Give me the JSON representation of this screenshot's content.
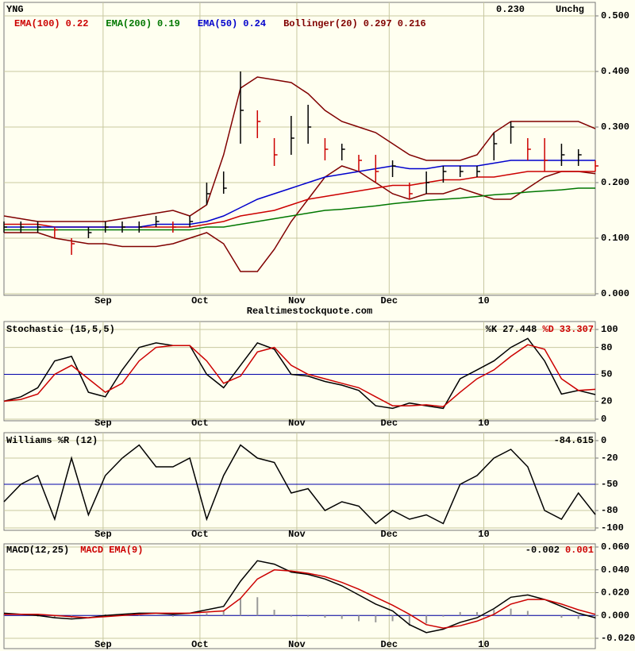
{
  "chart_data": [
    {
      "type": "ohlc",
      "symbol": "YNG",
      "price": "0.230",
      "change": "Unchg",
      "source": "Realtimestockquote.com",
      "x": [
        0,
        3,
        6,
        9,
        12,
        15,
        18,
        21,
        24,
        27,
        30,
        33,
        36,
        39,
        42,
        45,
        48,
        51,
        54,
        57,
        60,
        63,
        66,
        69,
        72,
        75,
        78,
        81,
        84,
        87,
        90,
        93,
        96,
        99,
        102,
        105
      ],
      "xlim": [
        0,
        105
      ],
      "xticks": [
        {
          "value": 17.6,
          "label": "Sep"
        },
        {
          "value": 34.8,
          "label": "Oct"
        },
        {
          "value": 52,
          "label": "Nov"
        },
        {
          "value": 68.4,
          "label": "Dec"
        },
        {
          "value": 85.2,
          "label": "10"
        }
      ],
      "ylim": [
        0,
        0.5
      ],
      "yticks": [
        {
          "value": 0,
          "label": "0.000"
        },
        {
          "value": 0.1,
          "label": "0.100"
        },
        {
          "value": 0.2,
          "label": "0.200"
        },
        {
          "value": 0.3,
          "label": "0.300"
        },
        {
          "value": 0.4,
          "label": "0.400"
        },
        {
          "value": 0.5,
          "label": "0.500"
        }
      ],
      "grid": true,
      "legend": "left",
      "up_color": "#000000",
      "down_color": "#cc0000",
      "high": [
        0.13,
        0.13,
        0.13,
        0.12,
        0.1,
        0.12,
        0.13,
        0.13,
        0.13,
        0.14,
        0.13,
        0.14,
        0.2,
        0.22,
        0.4,
        0.33,
        0.28,
        0.32,
        0.34,
        0.28,
        0.27,
        0.25,
        0.25,
        0.24,
        0.2,
        0.22,
        0.23,
        0.23,
        0.23,
        0.29,
        0.31,
        0.28,
        0.28,
        0.27,
        0.26,
        0.24
      ],
      "low": [
        0.11,
        0.11,
        0.11,
        0.1,
        0.07,
        0.1,
        0.11,
        0.11,
        0.11,
        0.12,
        0.11,
        0.12,
        0.16,
        0.18,
        0.27,
        0.28,
        0.23,
        0.25,
        0.27,
        0.24,
        0.24,
        0.22,
        0.2,
        0.21,
        0.17,
        0.18,
        0.2,
        0.21,
        0.21,
        0.24,
        0.27,
        0.24,
        0.22,
        0.23,
        0.23,
        0.22
      ],
      "close": [
        0.12,
        0.12,
        0.12,
        0.115,
        0.09,
        0.11,
        0.12,
        0.12,
        0.12,
        0.13,
        0.12,
        0.13,
        0.18,
        0.19,
        0.33,
        0.31,
        0.25,
        0.28,
        0.3,
        0.26,
        0.26,
        0.24,
        0.22,
        0.23,
        0.18,
        0.2,
        0.22,
        0.22,
        0.22,
        0.27,
        0.3,
        0.26,
        0.24,
        0.25,
        0.25,
        0.23
      ],
      "series": [
        {
          "name": "EMA(100)",
          "color": "#cc0000",
          "values": [
            0.125,
            0.125,
            0.125,
            0.12,
            0.12,
            0.12,
            0.12,
            0.12,
            0.12,
            0.12,
            0.12,
            0.12,
            0.125,
            0.13,
            0.14,
            0.145,
            0.15,
            0.16,
            0.17,
            0.175,
            0.18,
            0.185,
            0.19,
            0.195,
            0.195,
            0.2,
            0.205,
            0.205,
            0.21,
            0.21,
            0.215,
            0.22,
            0.22,
            0.22,
            0.22,
            0.22
          ]
        },
        {
          "name": "EMA(200)",
          "color": "#007700",
          "values": [
            0.115,
            0.115,
            0.115,
            0.115,
            0.115,
            0.115,
            0.115,
            0.115,
            0.115,
            0.115,
            0.115,
            0.115,
            0.12,
            0.12,
            0.125,
            0.13,
            0.135,
            0.14,
            0.145,
            0.15,
            0.152,
            0.155,
            0.158,
            0.162,
            0.165,
            0.168,
            0.17,
            0.172,
            0.175,
            0.178,
            0.18,
            0.183,
            0.185,
            0.187,
            0.19,
            0.19
          ]
        },
        {
          "name": "EMA(50)",
          "color": "#0000cc",
          "values": [
            0.12,
            0.12,
            0.12,
            0.12,
            0.12,
            0.12,
            0.12,
            0.12,
            0.12,
            0.125,
            0.125,
            0.125,
            0.13,
            0.14,
            0.155,
            0.17,
            0.18,
            0.19,
            0.2,
            0.21,
            0.215,
            0.22,
            0.225,
            0.23,
            0.225,
            0.225,
            0.23,
            0.23,
            0.23,
            0.235,
            0.24,
            0.24,
            0.24,
            0.24,
            0.24,
            0.24
          ]
        }
      ],
      "bands": {
        "name": "Bollinger(20)",
        "color": "#800000",
        "upper": [
          0.14,
          0.135,
          0.13,
          0.13,
          0.13,
          0.13,
          0.13,
          0.135,
          0.14,
          0.145,
          0.15,
          0.14,
          0.16,
          0.25,
          0.37,
          0.39,
          0.385,
          0.38,
          0.36,
          0.33,
          0.31,
          0.3,
          0.29,
          0.27,
          0.25,
          0.24,
          0.24,
          0.24,
          0.25,
          0.29,
          0.31,
          0.31,
          0.31,
          0.31,
          0.31,
          0.297
        ],
        "lower": [
          0.11,
          0.11,
          0.11,
          0.1,
          0.095,
          0.09,
          0.09,
          0.085,
          0.085,
          0.085,
          0.09,
          0.1,
          0.11,
          0.09,
          0.04,
          0.04,
          0.08,
          0.13,
          0.17,
          0.21,
          0.23,
          0.22,
          0.2,
          0.18,
          0.17,
          0.18,
          0.18,
          0.19,
          0.18,
          0.17,
          0.17,
          0.19,
          0.21,
          0.22,
          0.22,
          0.216
        ]
      }
    },
    {
      "type": "line",
      "title": "Stochastic (15,5,5)",
      "x": [
        0,
        3,
        6,
        9,
        12,
        15,
        18,
        21,
        24,
        27,
        30,
        33,
        36,
        39,
        42,
        45,
        48,
        51,
        54,
        57,
        60,
        63,
        66,
        69,
        72,
        75,
        78,
        81,
        84,
        87,
        90,
        93,
        96,
        99,
        102,
        105
      ],
      "xlim": [
        0,
        105
      ],
      "xticks": [
        {
          "value": 17.6,
          "label": "Sep"
        },
        {
          "value": 34.8,
          "label": "Oct"
        },
        {
          "value": 52,
          "label": "Nov"
        },
        {
          "value": 68.4,
          "label": "Dec"
        },
        {
          "value": 85.2,
          "label": "10"
        }
      ],
      "ylim": [
        0,
        100
      ],
      "yticks": [
        0,
        20,
        50,
        80,
        100
      ],
      "grid": true,
      "legend": "right",
      "reference_line": 50,
      "reference_color": "#0000aa",
      "series": [
        {
          "name": "%K",
          "color": "#000000",
          "values": [
            20,
            25,
            35,
            65,
            70,
            30,
            25,
            55,
            80,
            85,
            82,
            82,
            50,
            35,
            60,
            85,
            78,
            50,
            48,
            42,
            38,
            32,
            15,
            12,
            18,
            15,
            12,
            45,
            55,
            65,
            80,
            90,
            65,
            28,
            32,
            27.448
          ]
        },
        {
          "name": "%D",
          "color": "#cc0000",
          "values": [
            20,
            22,
            28,
            50,
            60,
            45,
            30,
            40,
            65,
            80,
            82,
            82,
            65,
            40,
            48,
            75,
            80,
            60,
            50,
            45,
            40,
            35,
            25,
            15,
            15,
            16,
            14,
            30,
            45,
            55,
            70,
            83,
            78,
            45,
            32,
            33.307
          ]
        }
      ]
    },
    {
      "type": "line",
      "title": "Williams %R (12)",
      "x": [
        0,
        3,
        6,
        9,
        12,
        15,
        18,
        21,
        24,
        27,
        30,
        33,
        36,
        39,
        42,
        45,
        48,
        51,
        54,
        57,
        60,
        63,
        66,
        69,
        72,
        75,
        78,
        81,
        84,
        87,
        90,
        93,
        96,
        99,
        102,
        105
      ],
      "xlim": [
        0,
        105
      ],
      "xticks": [
        {
          "value": 17.6,
          "label": "Sep"
        },
        {
          "value": 34.8,
          "label": "Oct"
        },
        {
          "value": 52,
          "label": "Nov"
        },
        {
          "value": 68.4,
          "label": "Dec"
        },
        {
          "value": 85.2,
          "label": "10"
        }
      ],
      "ylim": [
        -100,
        0
      ],
      "yticks": [
        0,
        -20,
        -50,
        -80,
        -100
      ],
      "grid": true,
      "legend": "right",
      "reference_line": -50,
      "reference_color": "#0000aa",
      "series": [
        {
          "color": "#000000",
          "values": [
            -70,
            -50,
            -40,
            -90,
            -20,
            -85,
            -40,
            -20,
            -5,
            -30,
            -30,
            -20,
            -90,
            -40,
            -5,
            -20,
            -25,
            -60,
            -55,
            -80,
            -70,
            -75,
            -95,
            -80,
            -90,
            -85,
            -95,
            -50,
            -40,
            -20,
            -10,
            -30,
            -80,
            -90,
            -60,
            -84.615
          ]
        }
      ]
    },
    {
      "type": "macd",
      "x": [
        0,
        3,
        6,
        9,
        12,
        15,
        18,
        21,
        24,
        27,
        30,
        33,
        36,
        39,
        42,
        45,
        48,
        51,
        54,
        57,
        60,
        63,
        66,
        69,
        72,
        75,
        78,
        81,
        84,
        87,
        90,
        93,
        96,
        99,
        102,
        105
      ],
      "xlim": [
        0,
        105
      ],
      "xticks": [
        {
          "value": 17.6,
          "label": "Sep"
        },
        {
          "value": 34.8,
          "label": "Oct"
        },
        {
          "value": 52,
          "label": "Nov"
        },
        {
          "value": 68.4,
          "label": "Dec"
        },
        {
          "value": 85.2,
          "label": "10"
        }
      ],
      "ylim": [
        -0.02,
        0.06
      ],
      "yticks": [
        {
          "value": -0.02,
          "label": "-0.020"
        },
        {
          "value": 0,
          "label": "0.000"
        },
        {
          "value": 0.02,
          "label": "0.020"
        },
        {
          "value": 0.04,
          "label": "0.040"
        },
        {
          "value": 0.06,
          "label": "0.060"
        }
      ],
      "grid": true,
      "legend": "split",
      "reference_line": 0,
      "reference_color": "#0000aa",
      "histogram": {
        "color": "#999999",
        "values": [
          0.001,
          0,
          -0.001,
          -0.002,
          -0.002,
          0,
          0.001,
          0.001,
          0.001,
          0,
          -0.001,
          0,
          0.002,
          0.004,
          0.015,
          0.016,
          0.005,
          -0.001,
          -0.001,
          -0.002,
          -0.003,
          -0.005,
          -0.006,
          -0.005,
          -0.009,
          -0.007,
          -0.001,
          0.003,
          0.003,
          0.005,
          0.006,
          0.004,
          0,
          -0.002,
          -0.003,
          -0.003
        ]
      },
      "series": [
        {
          "name": "MACD(12,25)",
          "color": "#000000",
          "values": [
            0.002,
            0.001,
            0,
            -0.002,
            -0.003,
            -0.002,
            0,
            0.001,
            0.002,
            0.002,
            0.001,
            0.002,
            0.005,
            0.008,
            0.03,
            0.048,
            0.045,
            0.038,
            0.036,
            0.032,
            0.026,
            0.018,
            0.01,
            0.004,
            -0.008,
            -0.015,
            -0.012,
            -0.006,
            -0.002,
            0.006,
            0.016,
            0.018,
            0.014,
            0.008,
            0.002,
            -0.002
          ]
        },
        {
          "name": "MACD EMA(9)",
          "color": "#cc0000",
          "values": [
            0.001,
            0.001,
            0.001,
            0,
            -0.001,
            -0.002,
            -0.001,
            0,
            0.001,
            0.002,
            0.002,
            0.002,
            0.003,
            0.004,
            0.015,
            0.032,
            0.04,
            0.039,
            0.037,
            0.034,
            0.029,
            0.023,
            0.016,
            0.009,
            0.001,
            -0.008,
            -0.011,
            -0.009,
            -0.005,
            0.001,
            0.01,
            0.014,
            0.014,
            0.01,
            0.005,
            0.001
          ]
        }
      ]
    }
  ]
}
